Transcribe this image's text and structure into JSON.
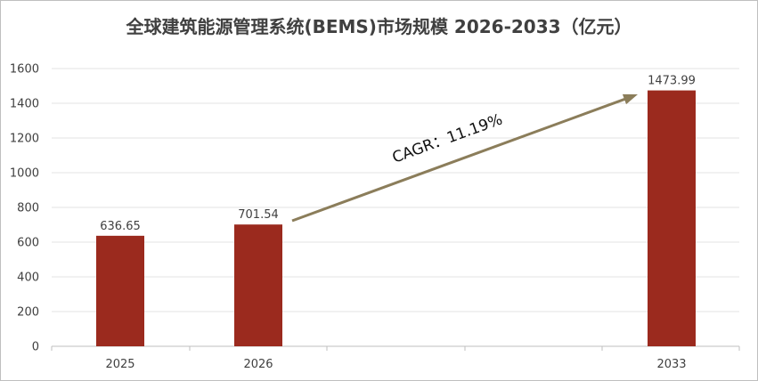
{
  "chart_data": {
    "type": "bar",
    "title": "全球建筑能源管理系统(BEMS)市场规模 2026-2033（亿元）",
    "categories": [
      "2025",
      "2026",
      "2033"
    ],
    "values": [
      636.65,
      701.54,
      1473.99
    ],
    "data_labels": [
      "636.65",
      "701.54",
      "1473.99"
    ],
    "ylim": [
      0,
      1600
    ],
    "yticks": [
      0,
      200,
      400,
      600,
      800,
      1000,
      1200,
      1400,
      1600
    ],
    "xlabel": "",
    "ylabel": "",
    "grid": true,
    "legend": "none",
    "bar_color": "#9b2a1e",
    "annotation": {
      "text": "CAGR：11.19%",
      "arrow": {
        "from": "2026",
        "to": "2033"
      },
      "arrow_color": "#8b7d5a"
    }
  }
}
